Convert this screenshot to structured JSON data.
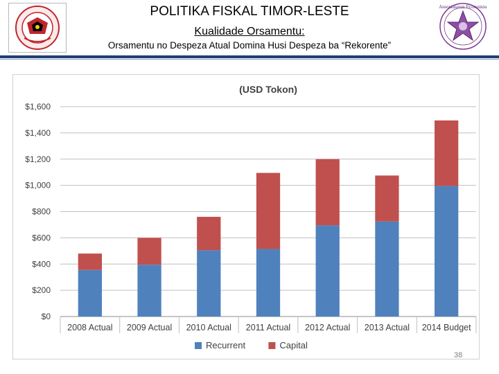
{
  "header": {
    "title": "POLITIKA FISKAL TIMOR-LESTE",
    "subtitle": "Kualidade Orsamentu:",
    "subtitle2": "Orsamentu no Despeza Atual Domina  Husi Despeza ba “Rekorente”"
  },
  "logos": {
    "right_text": "Assosiasaun Economia"
  },
  "page_number": "38",
  "colors": {
    "recurrent": "#4f81bd",
    "capital": "#c0504d",
    "header_rule": "#1f3f73",
    "logo_red": "#c0262d"
  },
  "chart_data": {
    "type": "bar",
    "stacked": true,
    "title": "(USD Tokon)",
    "categories": [
      "2008 Actual",
      "2009 Actual",
      "2010 Actual",
      "2011 Actual",
      "2012 Actual",
      "2013 Actual",
      "2014 Budget"
    ],
    "series": [
      {
        "name": "Recurrent",
        "values": [
          355,
          395,
          505,
          515,
          695,
          725,
          995
        ]
      },
      {
        "name": "Capital",
        "values": [
          125,
          205,
          255,
          580,
          505,
          350,
          500
        ]
      }
    ],
    "ylim": [
      0,
      1600
    ],
    "yticks": [
      0,
      200,
      400,
      600,
      800,
      1000,
      1200,
      1400,
      1600
    ],
    "ytick_labels": [
      "$0",
      "$200",
      "$400",
      "$600",
      "$800",
      "$1,000",
      "$1,200",
      "$1,400",
      "$1,600"
    ],
    "xlabel": "",
    "ylabel": "",
    "grid": true,
    "legend_position": "bottom"
  }
}
